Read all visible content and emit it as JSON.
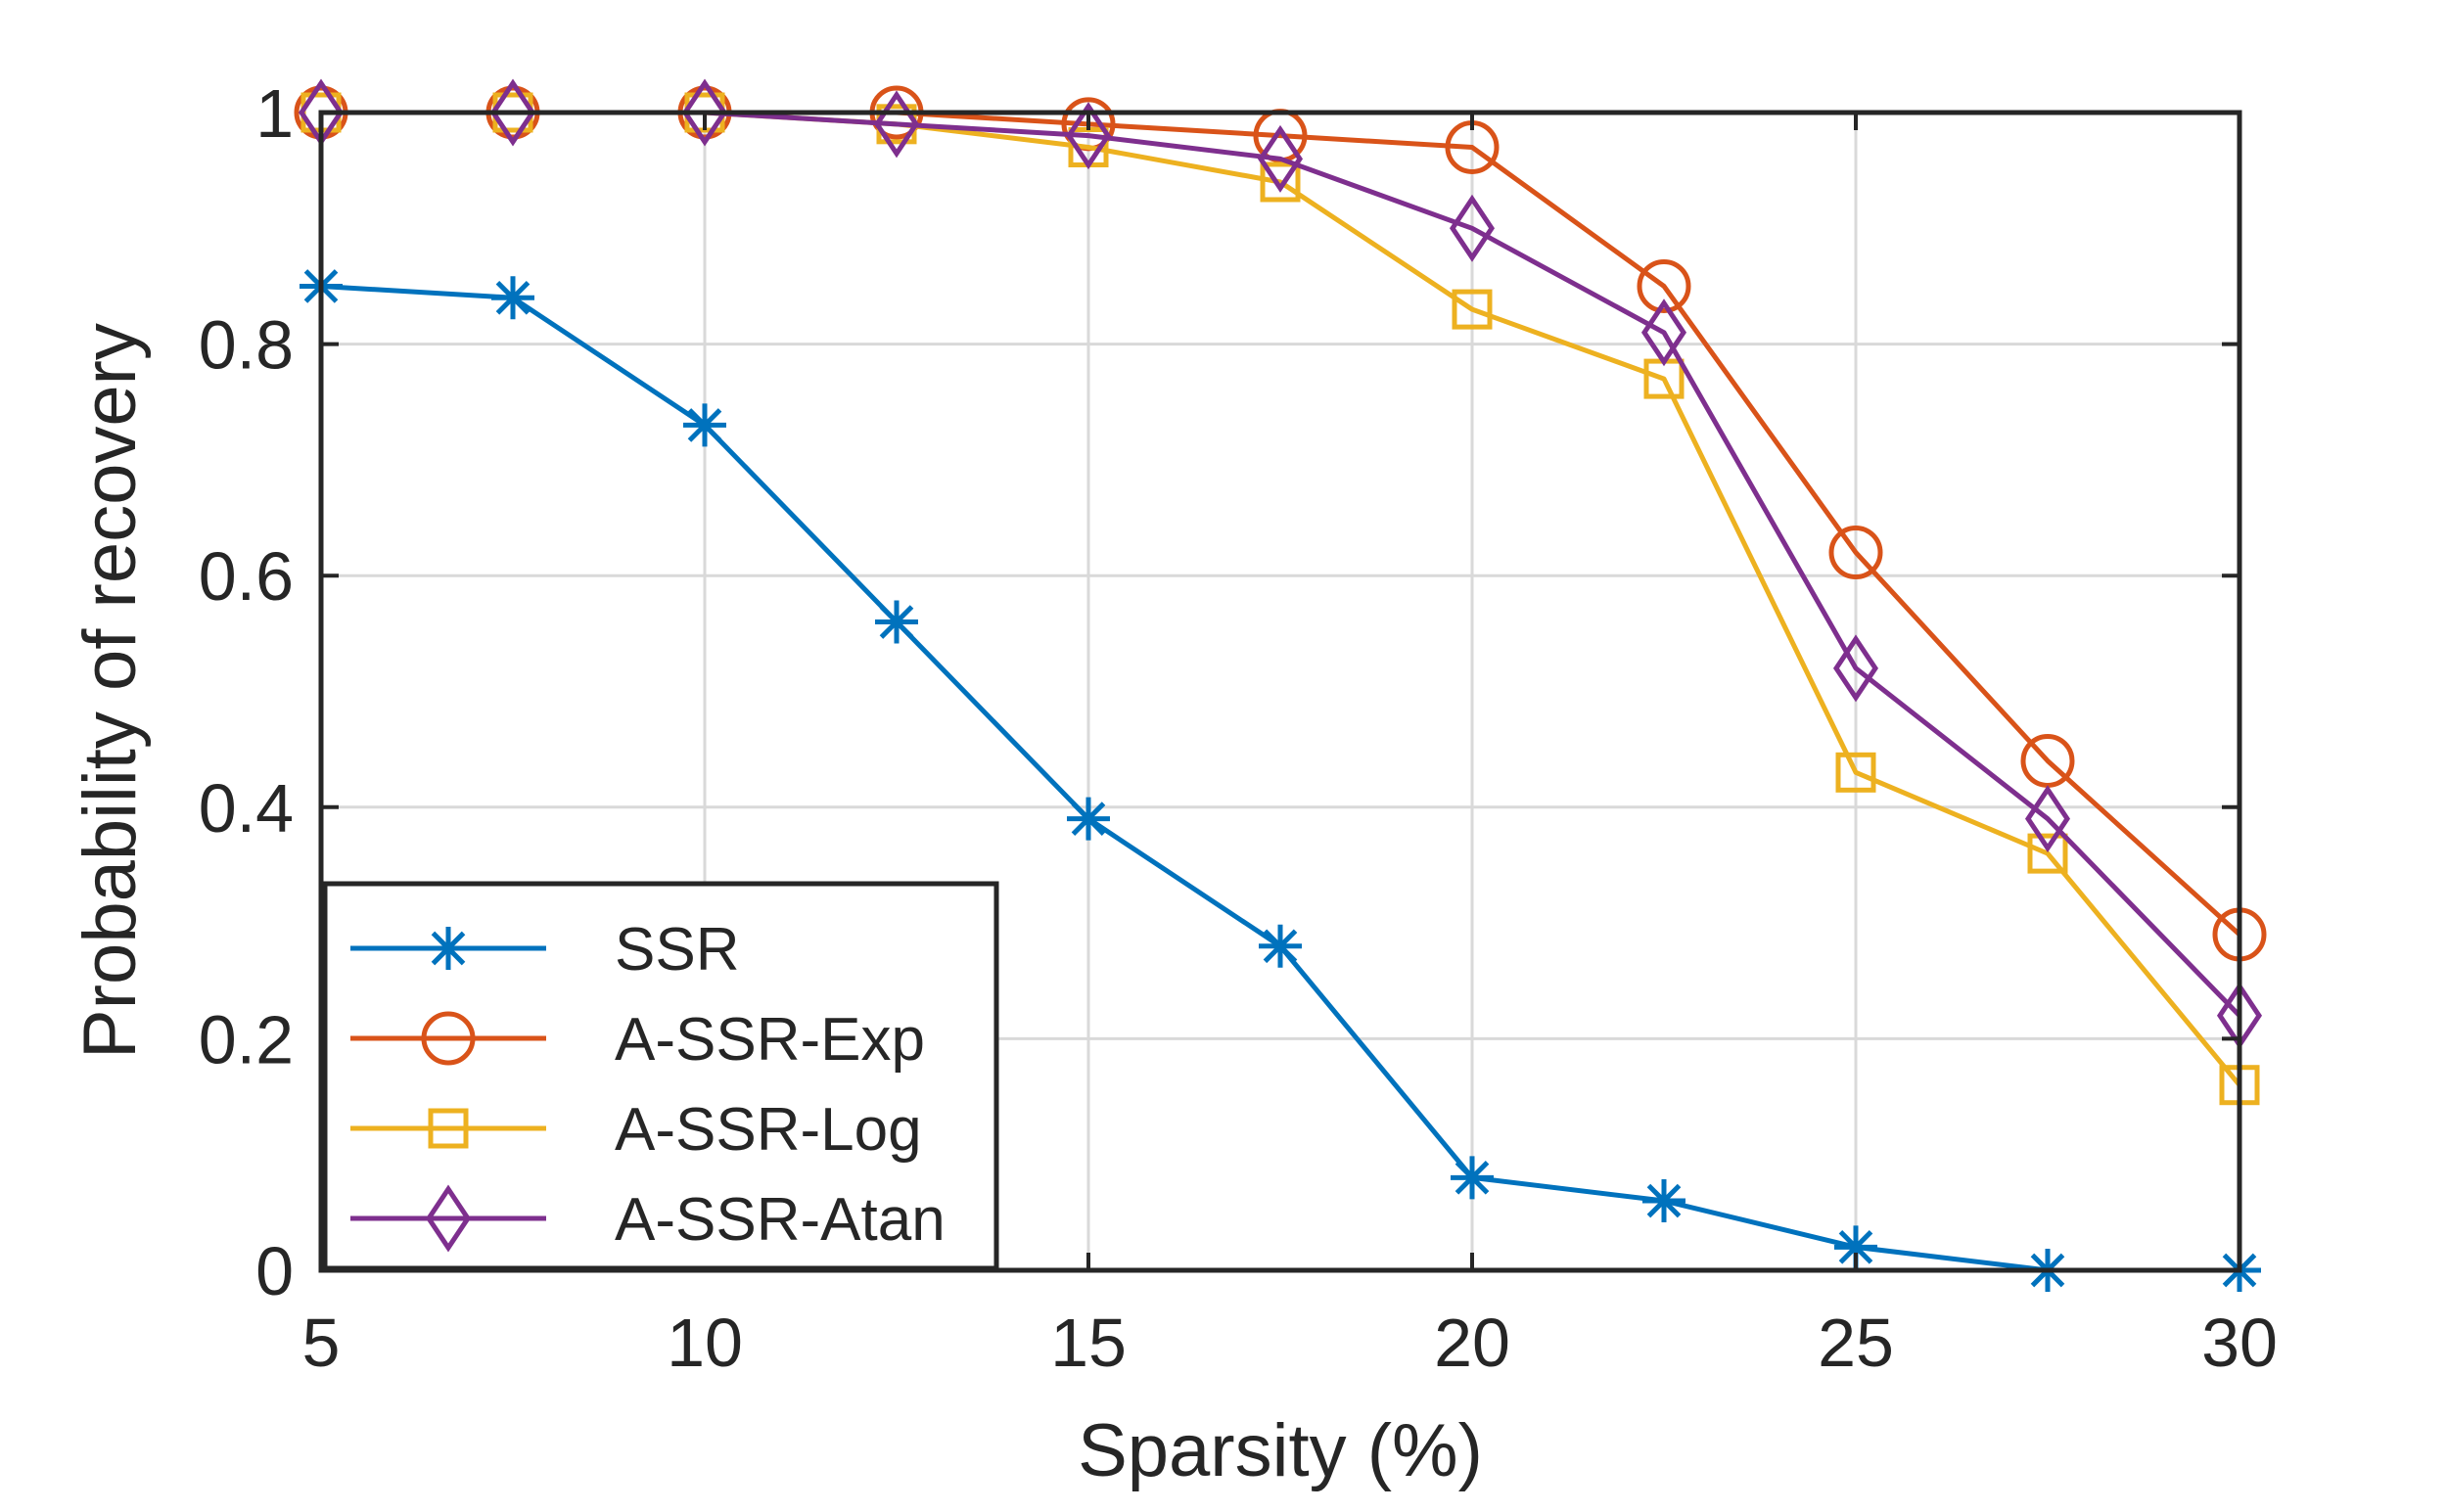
{
  "chart_data": {
    "type": "line",
    "title": "",
    "xlabel": "Sparsity (%)",
    "ylabel": "Probability of recovery",
    "xlim": [
      5,
      30
    ],
    "ylim": [
      0,
      1
    ],
    "xticks": [
      5,
      10,
      15,
      20,
      25,
      30
    ],
    "yticks": [
      0,
      0.2,
      0.4,
      0.6,
      0.8,
      1
    ],
    "xtick_labels": [
      "5",
      "10",
      "15",
      "20",
      "25",
      "30"
    ],
    "ytick_labels": [
      "0",
      "0.2",
      "0.4",
      "0.6",
      "0.8",
      "1"
    ],
    "grid": true,
    "legend_position": "bottom-left",
    "x": [
      5,
      7.5,
      10,
      12.5,
      15,
      17.5,
      20,
      22.5,
      25,
      27.5,
      30
    ],
    "series": [
      {
        "name": "SSR",
        "color": "#0072BD",
        "marker": "asterisk",
        "values": [
          0.85,
          0.84,
          0.73,
          0.56,
          0.39,
          0.28,
          0.08,
          0.06,
          0.02,
          0.0,
          0.0
        ]
      },
      {
        "name": "A-SSR-Exp",
        "color": "#D95319",
        "marker": "circle",
        "values": [
          1.0,
          1.0,
          1.0,
          1.0,
          0.99,
          0.98,
          0.97,
          0.85,
          0.62,
          0.44,
          0.29
        ]
      },
      {
        "name": "A-SSR-Log",
        "color": "#EDB120",
        "marker": "square",
        "values": [
          1.0,
          1.0,
          1.0,
          0.99,
          0.97,
          0.94,
          0.83,
          0.77,
          0.43,
          0.36,
          0.16
        ]
      },
      {
        "name": "A-SSR-Atan",
        "color": "#7E2F8E",
        "marker": "diamond",
        "values": [
          1.0,
          1.0,
          1.0,
          0.99,
          0.98,
          0.96,
          0.9,
          0.81,
          0.52,
          0.39,
          0.22
        ]
      }
    ]
  }
}
